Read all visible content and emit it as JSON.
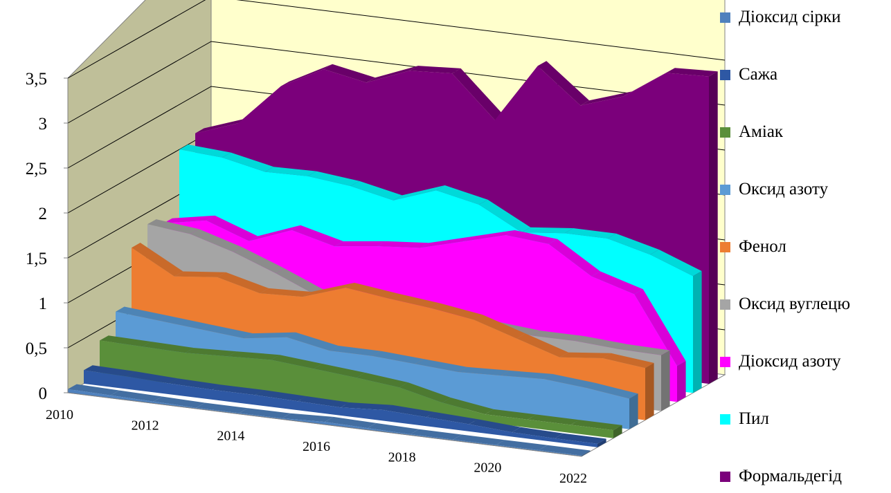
{
  "chart_data": {
    "type": "area",
    "subtype": "3d-stacked-ribbons",
    "title": "",
    "xlabel": "",
    "ylabel": "",
    "ylim": [
      0,
      3.5
    ],
    "yticks": [
      "0",
      "0,5",
      "1",
      "1,5",
      "2",
      "2,5",
      "3",
      "3,5"
    ],
    "xticks": [
      "2010",
      "2012",
      "2014",
      "2016",
      "2018",
      "2020",
      "2022"
    ],
    "x": [
      2010,
      2011,
      2012,
      2013,
      2014,
      2015,
      2016,
      2017,
      2018,
      2019,
      2020,
      2021,
      2022
    ],
    "grid": true,
    "legend_position": "right",
    "wall_colors": {
      "back": "#ffffcc",
      "side": "#bfbf99",
      "floor": "#ffffff"
    },
    "series": [
      {
        "name": "Діоксид сірки",
        "color": "#4f81bd",
        "values": [
          0.04,
          0.03,
          0.02,
          0.01,
          0.01,
          0.01,
          0.03,
          0.02,
          0.01,
          0.01,
          0.01,
          0.01,
          0.01
        ]
      },
      {
        "name": "Сажа",
        "color": "#2e58a4",
        "values": [
          0.15,
          0.14,
          0.12,
          0.11,
          0.11,
          0.1,
          0.09,
          0.12,
          0.1,
          0.08,
          0.05,
          0.04,
          0.04
        ]
      },
      {
        "name": "Аміак",
        "color": "#5a8f3a",
        "values": [
          0.38,
          0.37,
          0.36,
          0.38,
          0.4,
          0.36,
          0.32,
          0.27,
          0.16,
          0.09,
          0.09,
          0.09,
          0.09
        ]
      },
      {
        "name": "Оксид азоту",
        "color": "#5b9bd5",
        "values": [
          0.6,
          0.56,
          0.52,
          0.48,
          0.55,
          0.46,
          0.46,
          0.43,
          0.4,
          0.42,
          0.44,
          0.4,
          0.34
        ]
      },
      {
        "name": "Фенол",
        "color": "#ed7d31",
        "values": [
          1.21,
          0.95,
          1.0,
          0.88,
          0.9,
          1.06,
          1.0,
          0.95,
          0.88,
          0.73,
          0.58,
          0.63,
          0.58
        ]
      },
      {
        "name": "Оксид вуглецю",
        "color": "#a5a5a5",
        "values": [
          1.37,
          1.32,
          1.18,
          1.0,
          0.8,
          0.73,
          0.73,
          0.7,
          0.7,
          0.66,
          0.66,
          0.63,
          0.62
        ]
      },
      {
        "name": "Діоксид азоту",
        "color": "#ff00ff",
        "values": [
          1.28,
          1.37,
          1.2,
          1.38,
          1.26,
          1.32,
          1.36,
          1.49,
          1.62,
          1.58,
          1.28,
          1.14,
          0.4
        ]
      },
      {
        "name": "Пил",
        "color": "#00ffff",
        "values": [
          2.0,
          1.97,
          1.87,
          1.88,
          1.83,
          1.73,
          1.9,
          1.8,
          1.55,
          1.6,
          1.6,
          1.48,
          1.3
        ]
      },
      {
        "name": "Формальдегід",
        "color": "#7b007b",
        "values": [
          2.08,
          2.25,
          2.72,
          2.97,
          2.88,
          3.07,
          3.1,
          2.64,
          3.3,
          2.92,
          3.08,
          3.4,
          3.42
        ]
      }
    ]
  }
}
